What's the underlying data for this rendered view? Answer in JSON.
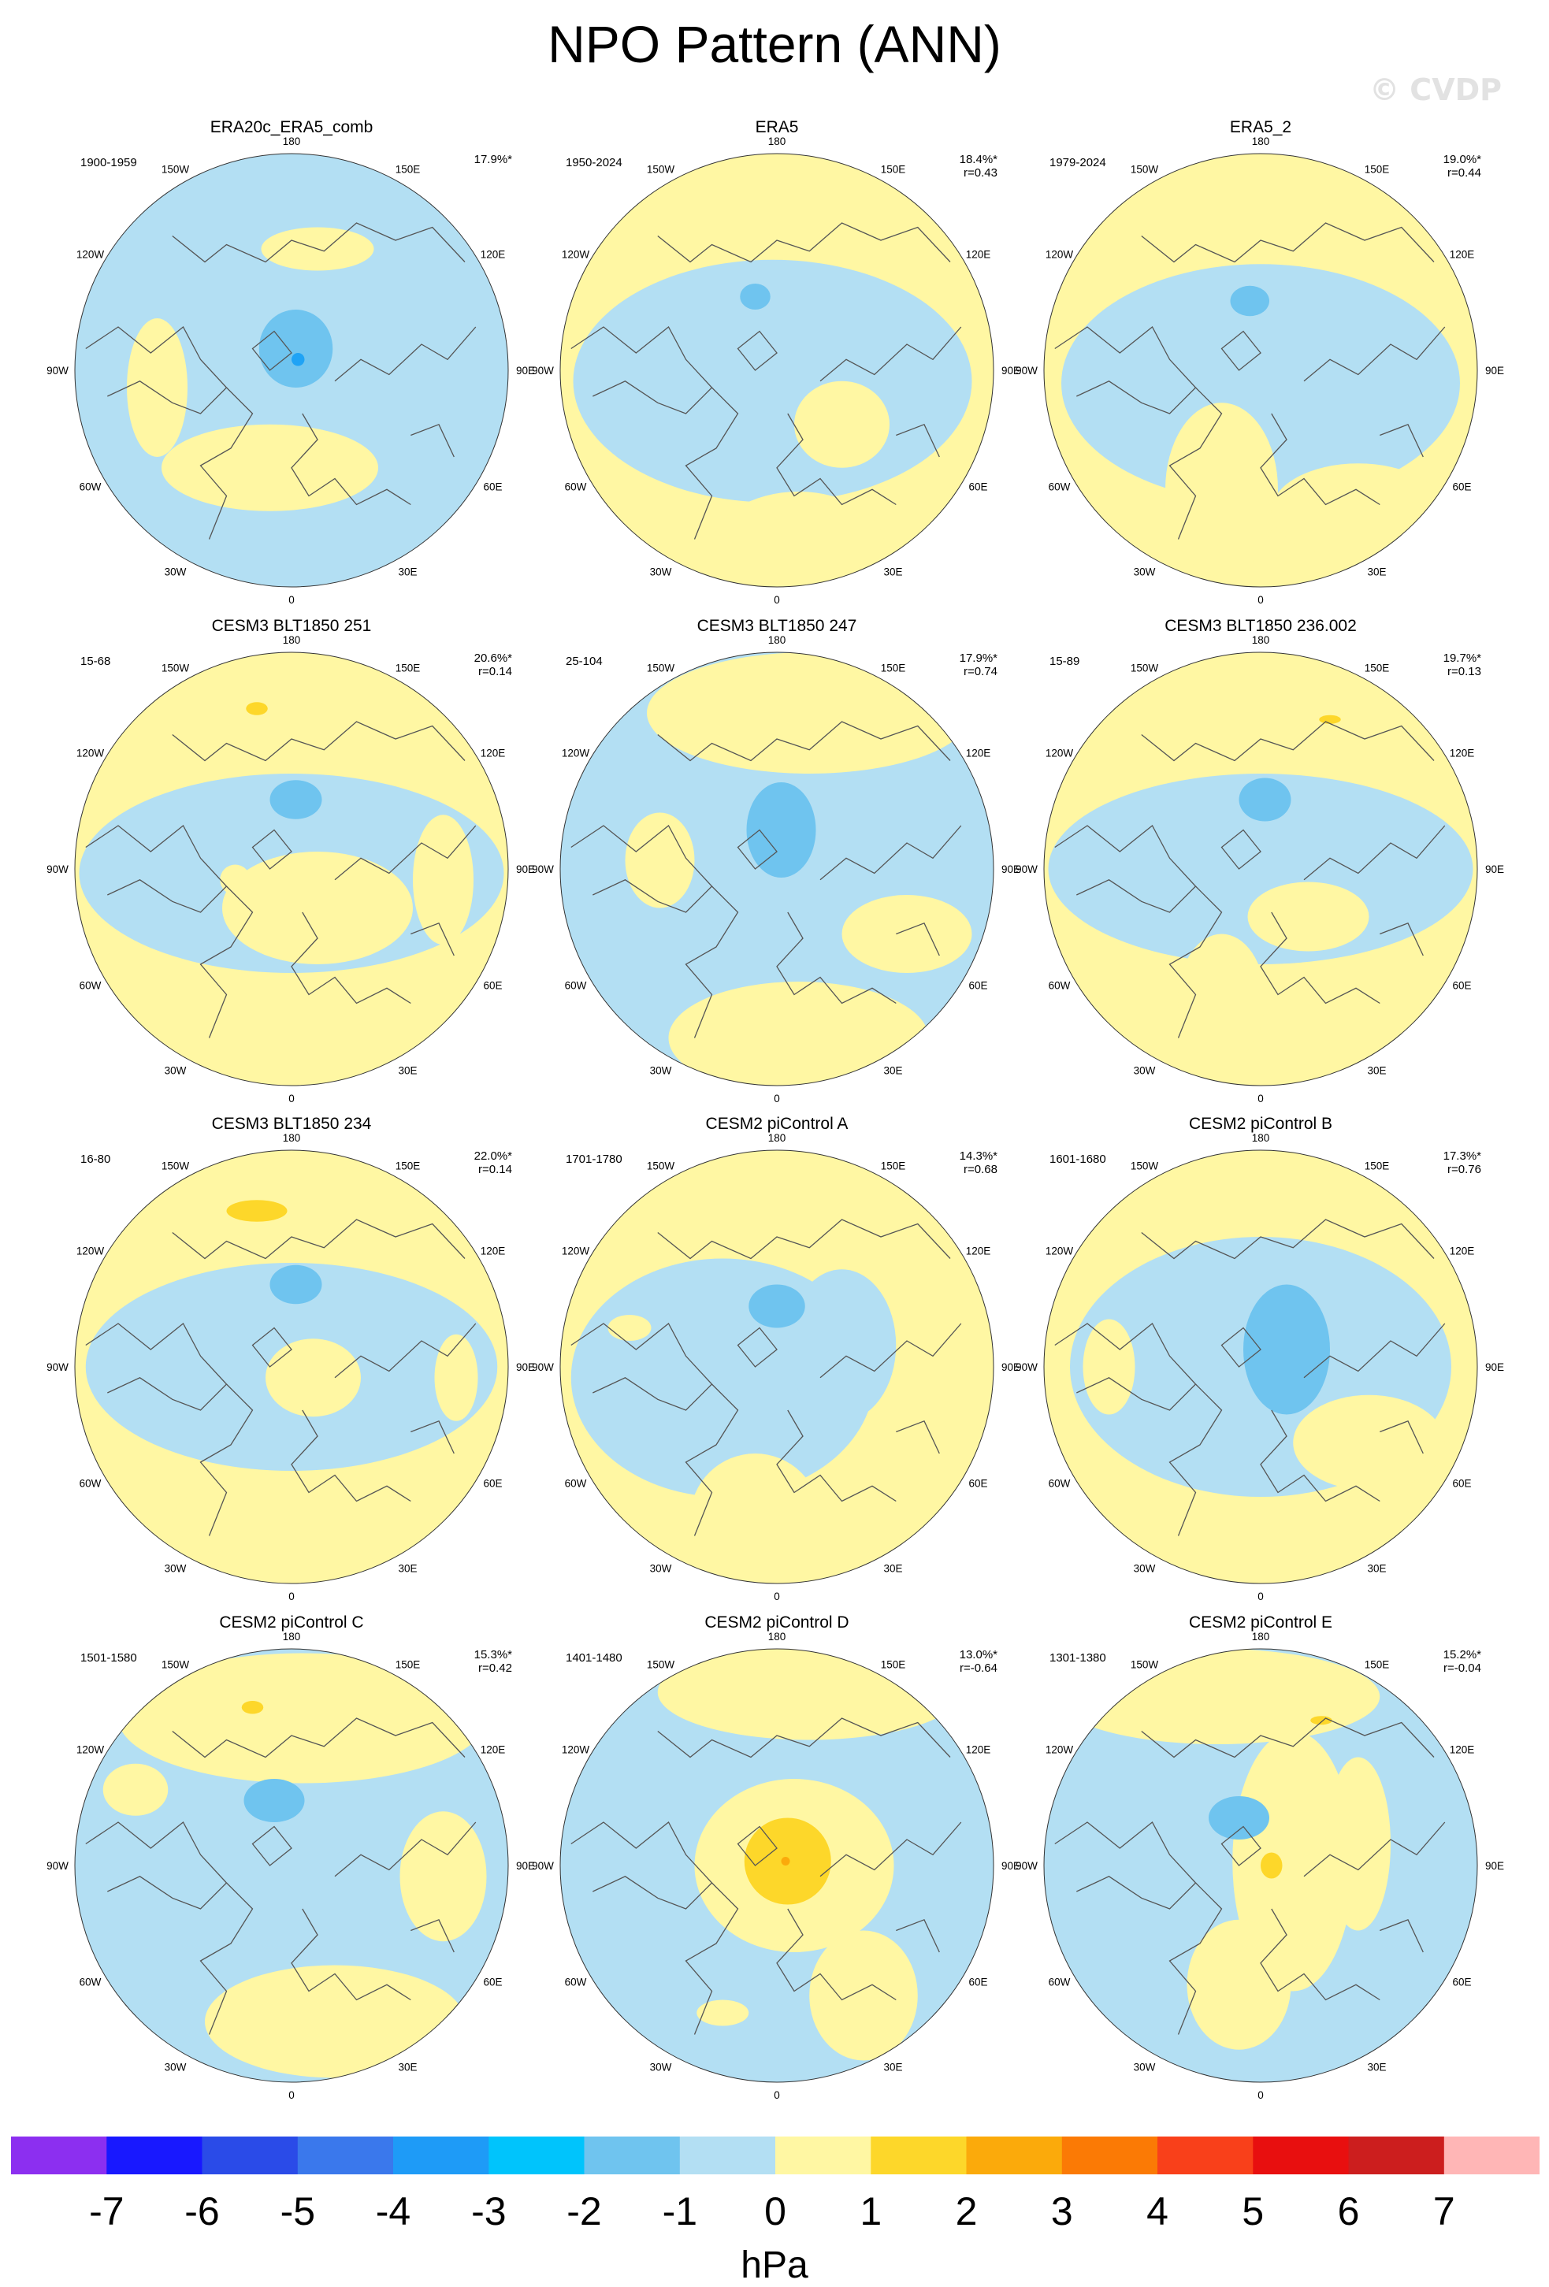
{
  "header": {
    "title": "NPO Pattern (ANN)",
    "watermark": "© CVDP"
  },
  "lon_labels": [
    "180",
    "150E",
    "120E",
    "90E",
    "60E",
    "30E",
    "0",
    "30W",
    "60W",
    "90W",
    "120W",
    "150W"
  ],
  "colors": {
    "ocean_neg1": "#b3dff3",
    "neg2": "#6fc4ef",
    "neg3": "#1fa3f5",
    "pos1": "#fff7a3",
    "pos2": "#fdd72a",
    "pos3": "#fbaa0b",
    "coast": "#555555"
  },
  "panels": [
    {
      "title": "ERA20c_ERA5_comb",
      "period": "1900-1959",
      "stat1": "17.9%*",
      "stat2": "",
      "base": "neg",
      "blobs": [
        [
          "pos",
          -0.62,
          0.08,
          0.14,
          0.32
        ],
        [
          "pos",
          -0.1,
          0.45,
          0.5,
          0.2
        ],
        [
          "pos",
          0.12,
          -0.56,
          0.26,
          0.1
        ],
        [
          "neg2",
          0.02,
          -0.1,
          0.17,
          0.18
        ],
        [
          "neg3",
          0.03,
          -0.05,
          0.03,
          0.03
        ]
      ]
    },
    {
      "title": "ERA5",
      "period": "1950-2024",
      "stat1": "18.4%*",
      "stat2": "r=0.43",
      "base": "pos",
      "blobs": [
        [
          "neg",
          -0.02,
          0.05,
          0.92,
          0.56
        ],
        [
          "pos",
          0.1,
          0.82,
          0.4,
          0.26
        ],
        [
          "pos",
          0.3,
          0.25,
          0.22,
          0.2
        ],
        [
          "neg2",
          -0.1,
          -0.34,
          0.07,
          0.06
        ]
      ]
    },
    {
      "title": "ERA5_2",
      "period": "1979-2024",
      "stat1": "19.0%*",
      "stat2": "r=0.44",
      "base": "pos",
      "blobs": [
        [
          "neg",
          0.0,
          0.06,
          0.92,
          0.55
        ],
        [
          "pos",
          -0.18,
          0.55,
          0.26,
          0.4
        ],
        [
          "pos",
          0.45,
          0.65,
          0.4,
          0.22
        ],
        [
          "neg2",
          -0.05,
          -0.32,
          0.09,
          0.07
        ]
      ]
    },
    {
      "title": "CESM3 BLT1850 251",
      "period": "15-68",
      "stat1": "20.6%*",
      "stat2": "r=0.14",
      "base": "pos",
      "blobs": [
        [
          "neg",
          0.0,
          0.02,
          0.98,
          0.46
        ],
        [
          "pos",
          0.12,
          0.18,
          0.44,
          0.26
        ],
        [
          "pos",
          0.7,
          0.05,
          0.14,
          0.3
        ],
        [
          "neg2",
          0.02,
          -0.32,
          0.12,
          0.09
        ],
        [
          "pos2",
          -0.16,
          -0.74,
          0.05,
          0.03
        ],
        [
          "pos",
          -0.26,
          0.05,
          0.07,
          0.07
        ]
      ]
    },
    {
      "title": "CESM3 BLT1850 247",
      "period": "25-104",
      "stat1": "17.9%*",
      "stat2": "r=0.74",
      "base": "neg",
      "blobs": [
        [
          "pos",
          0.15,
          -0.72,
          0.75,
          0.28
        ],
        [
          "pos",
          -0.54,
          -0.04,
          0.16,
          0.22
        ],
        [
          "pos",
          0.1,
          0.78,
          0.6,
          0.26
        ],
        [
          "pos",
          0.6,
          0.3,
          0.3,
          0.18
        ],
        [
          "neg2",
          0.02,
          -0.18,
          0.16,
          0.22
        ]
      ]
    },
    {
      "title": "CESM3 BLT1850 236.002",
      "period": "15-89",
      "stat1": "19.7%*",
      "stat2": "r=0.13",
      "base": "pos",
      "blobs": [
        [
          "neg",
          0.0,
          0.0,
          0.98,
          0.44
        ],
        [
          "pos",
          -0.18,
          0.6,
          0.2,
          0.3
        ],
        [
          "pos",
          0.22,
          0.22,
          0.28,
          0.16
        ],
        [
          "neg2",
          0.02,
          -0.32,
          0.12,
          0.1
        ],
        [
          "pos2",
          0.32,
          -0.69,
          0.05,
          0.02
        ]
      ]
    },
    {
      "title": "CESM3 BLT1850 234",
      "period": "16-80",
      "stat1": "22.0%*",
      "stat2": "r=0.14",
      "base": "pos",
      "blobs": [
        [
          "neg",
          0.0,
          0.0,
          0.95,
          0.48
        ],
        [
          "pos",
          0.1,
          0.05,
          0.22,
          0.18
        ],
        [
          "pos",
          0.76,
          0.05,
          0.1,
          0.2
        ],
        [
          "pos",
          0.05,
          0.7,
          0.6,
          0.22
        ],
        [
          "neg2",
          0.02,
          -0.38,
          0.12,
          0.09
        ],
        [
          "pos2",
          -0.16,
          -0.72,
          0.14,
          0.05
        ]
      ]
    },
    {
      "title": "CESM2 piControl A",
      "period": "1701-1780",
      "stat1": "14.3%*",
      "stat2": "r=0.68",
      "base": "pos",
      "blobs": [
        [
          "neg",
          -0.25,
          0.05,
          0.7,
          0.55
        ],
        [
          "neg",
          0.3,
          -0.1,
          0.25,
          0.35
        ],
        [
          "pos",
          -0.1,
          0.7,
          0.3,
          0.3
        ],
        [
          "pos",
          -0.68,
          -0.18,
          0.1,
          0.06
        ],
        [
          "neg2",
          0.0,
          -0.28,
          0.13,
          0.1
        ]
      ]
    },
    {
      "title": "CESM2 piControl B",
      "period": "1601-1680",
      "stat1": "17.3%*",
      "stat2": "r=0.76",
      "base": "pos",
      "blobs": [
        [
          "neg",
          0.0,
          0.0,
          0.88,
          0.6
        ],
        [
          "pos",
          -0.7,
          0.0,
          0.12,
          0.22
        ],
        [
          "pos",
          0.5,
          0.35,
          0.35,
          0.22
        ],
        [
          "neg2",
          0.12,
          -0.08,
          0.2,
          0.3
        ]
      ]
    },
    {
      "title": "CESM2 piControl C",
      "period": "1501-1580",
      "stat1": "15.3%*",
      "stat2": "r=0.42",
      "base": "neg",
      "blobs": [
        [
          "pos",
          0.05,
          -0.68,
          0.85,
          0.3
        ],
        [
          "pos",
          0.2,
          0.72,
          0.6,
          0.26
        ],
        [
          "pos",
          0.7,
          0.05,
          0.2,
          0.3
        ],
        [
          "pos",
          -0.72,
          -0.35,
          0.15,
          0.12
        ],
        [
          "neg2",
          -0.08,
          -0.3,
          0.14,
          0.1
        ],
        [
          "pos2",
          -0.18,
          -0.73,
          0.05,
          0.03
        ]
      ]
    },
    {
      "title": "CESM2 piControl D",
      "period": "1401-1480",
      "stat1": "13.0%*",
      "stat2": "r=-0.64",
      "base": "neg",
      "blobs": [
        [
          "pos",
          0.08,
          0.0,
          0.46,
          0.4
        ],
        [
          "pos",
          -0.25,
          0.68,
          0.12,
          0.06
        ],
        [
          "pos",
          0.4,
          0.6,
          0.25,
          0.3
        ],
        [
          "pos",
          0.15,
          -0.8,
          0.7,
          0.22
        ],
        [
          "pos2",
          0.05,
          -0.02,
          0.2,
          0.2
        ],
        [
          "pos3",
          0.04,
          -0.02,
          0.02,
          0.02
        ]
      ]
    },
    {
      "title": "CESM2 piControl E",
      "period": "1301-1380",
      "stat1": "15.2%*",
      "stat2": "r=-0.04",
      "base": "neg",
      "blobs": [
        [
          "pos",
          0.15,
          -0.02,
          0.28,
          0.6
        ],
        [
          "pos",
          -0.1,
          0.55,
          0.24,
          0.3
        ],
        [
          "pos",
          -0.2,
          -0.78,
          0.75,
          0.22
        ],
        [
          "pos",
          0.45,
          -0.1,
          0.15,
          0.4
        ],
        [
          "neg2",
          -0.1,
          -0.22,
          0.14,
          0.1
        ],
        [
          "pos2",
          0.05,
          0.0,
          0.05,
          0.06
        ],
        [
          "pos2",
          0.28,
          -0.67,
          0.05,
          0.02
        ]
      ]
    }
  ],
  "colorbar": {
    "colors": [
      "#8c2ff0",
      "#1818ff",
      "#2a4be8",
      "#3a78ec",
      "#1e9bf7",
      "#00c4fc",
      "#6fc4ef",
      "#b3dff3",
      "#fff7a3",
      "#fdd72a",
      "#fbaa0b",
      "#fb7a05",
      "#f9401a",
      "#e80f0f",
      "#cc1e1e",
      "#ffb6b6"
    ],
    "labels": [
      "-7",
      "-6",
      "-5",
      "-4",
      "-3",
      "-2",
      "-1",
      "0",
      "1",
      "2",
      "3",
      "4",
      "5",
      "6",
      "7"
    ],
    "units": "hPa"
  }
}
